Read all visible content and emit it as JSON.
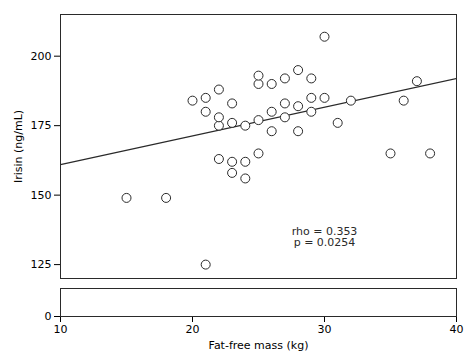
{
  "chart_data": [
    {
      "type": "scatter",
      "ylabel": "Irisin (ng/mL)",
      "xlim": [
        10,
        40
      ],
      "ylim": [
        120,
        215
      ],
      "yticks": [
        125,
        150,
        175,
        200
      ],
      "tick_labels": "y",
      "series": [
        {
          "type": "scatter",
          "marker": "circle",
          "color": "#2a2a2a",
          "x": [
            15,
            18,
            20,
            21,
            21,
            22,
            22,
            22,
            22,
            23,
            23,
            23,
            23,
            24,
            24,
            24,
            25,
            25,
            25,
            25,
            26,
            26,
            26,
            27,
            27,
            27,
            28,
            28,
            28,
            29,
            29,
            29,
            30,
            30,
            31,
            32,
            35,
            36,
            37,
            38,
            21
          ],
          "values": [
            149,
            149,
            184,
            180,
            185,
            163,
            175,
            178,
            188,
            158,
            162,
            176,
            183,
            156,
            162,
            175,
            165,
            177,
            190,
            193,
            173,
            180,
            190,
            178,
            183,
            192,
            173,
            182,
            195,
            180,
            185,
            192,
            207,
            185,
            176,
            184,
            165,
            184,
            191,
            165,
            125
          ]
        },
        {
          "type": "line",
          "line_style": "solid",
          "color": "#2a2a2a",
          "x": [
            10,
            40
          ],
          "values": [
            161,
            192
          ]
        }
      ],
      "annotations": [
        {
          "text": "rho = 0.353\np = 0.0254",
          "x": 30,
          "y": 135
        }
      ]
    },
    {
      "type": "scatter",
      "xlabel": "Fat-free mass (kg)",
      "xlim": [
        10,
        40
      ],
      "xticks": [
        10,
        20,
        30,
        40
      ],
      "ylim": [
        0,
        10
      ],
      "yticks": [
        0
      ]
    }
  ]
}
